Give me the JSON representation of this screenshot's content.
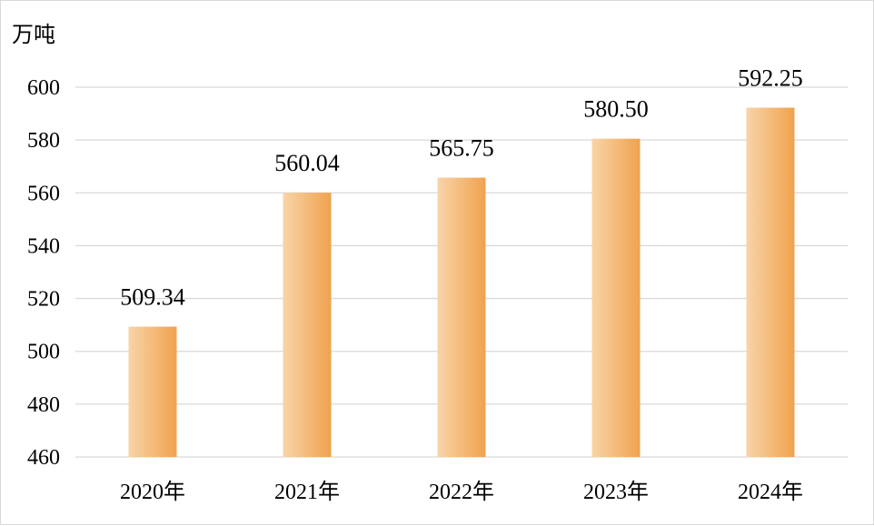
{
  "chart_data": {
    "type": "bar",
    "ylabel": "万吨",
    "categories": [
      "2020年",
      "2021年",
      "2022年",
      "2023年",
      "2024年"
    ],
    "values": [
      509.34,
      560.04,
      565.75,
      580.5,
      592.25
    ],
    "value_labels": [
      "509.34",
      "560.04",
      "565.75",
      "580.50",
      "592.25"
    ],
    "ylim": [
      460,
      600
    ],
    "yticks": [
      460,
      480,
      500,
      520,
      540,
      560,
      580,
      600
    ],
    "grid": true,
    "legend": "none",
    "bar_color_start": "#F8D4A8",
    "bar_color_end": "#F0A24E"
  }
}
